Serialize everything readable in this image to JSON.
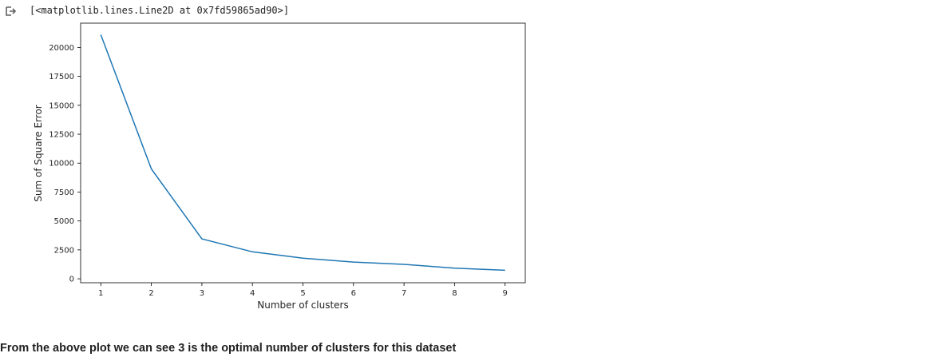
{
  "cell_output": {
    "icon": "output-arrow-icon",
    "text": "[<matplotlib.lines.Line2D at 0x7fd59865ad90>]"
  },
  "chart_data": {
    "type": "line",
    "x": [
      1,
      2,
      3,
      4,
      5,
      6,
      7,
      8,
      9
    ],
    "series": [
      {
        "values": [
          21100,
          9500,
          3450,
          2330,
          1780,
          1450,
          1250,
          920,
          740
        ],
        "color": "#1f77b4"
      }
    ],
    "xlabel": "Number of clusters",
    "ylabel": "Sum of Square Error",
    "xticks": [
      1,
      2,
      3,
      4,
      5,
      6,
      7,
      8,
      9
    ],
    "yticks": [
      0,
      2500,
      5000,
      7500,
      10000,
      12500,
      15000,
      17500,
      20000
    ],
    "xlim": [
      0.6,
      9.4
    ],
    "ylim": [
      -340,
      22100
    ],
    "grid": false
  },
  "markdown": {
    "text": "From the above plot we can see 3 is the optimal number of clusters for this dataset"
  }
}
